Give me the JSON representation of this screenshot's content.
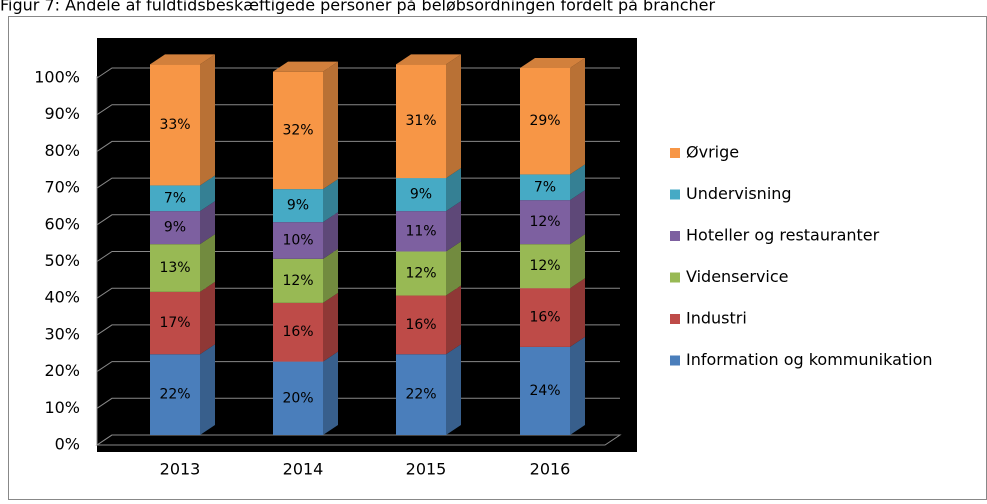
{
  "chart_data": {
    "type": "bar3d_stacked",
    "title": "Figur 7: Andele af fuldtidsbeskæftigede personer på beløbsordningen fordelt på brancher",
    "categories": [
      "2013",
      "2014",
      "2015",
      "2016"
    ],
    "series": [
      {
        "name": "Information og kommunikation",
        "color": "#4a7ebb",
        "values": [
          22,
          20,
          22,
          24
        ],
        "value_labels": [
          "22%",
          "20%",
          "22%",
          "24%"
        ]
      },
      {
        "name": "Industri",
        "color": "#be4b48",
        "values": [
          17,
          16,
          16,
          16
        ],
        "value_labels": [
          "17%",
          "16%",
          "16%",
          "16%"
        ]
      },
      {
        "name": "Videnservice",
        "color": "#98b954",
        "values": [
          13,
          12,
          12,
          12
        ],
        "value_labels": [
          "13%",
          "12%",
          "12%",
          "12%"
        ]
      },
      {
        "name": "Hoteller og restauranter",
        "color": "#7d60a0",
        "values": [
          9,
          10,
          11,
          12
        ],
        "value_labels": [
          "9%",
          "10%",
          "11%",
          "12%"
        ]
      },
      {
        "name": "Undervisning",
        "color": "#46aac5",
        "values": [
          7,
          9,
          9,
          7
        ],
        "value_labels": [
          "7%",
          "9%",
          "9%",
          "7%"
        ]
      },
      {
        "name": "Øvrige",
        "color": "#f79646",
        "values": [
          33,
          32,
          31,
          29
        ],
        "value_labels": [
          "33%",
          "32%",
          "31%",
          "29%"
        ]
      }
    ],
    "ylim": [
      0,
      100
    ],
    "yticks": [
      {
        "value": 0,
        "label": "0%"
      },
      {
        "value": 10,
        "label": "10%"
      },
      {
        "value": 20,
        "label": "20%"
      },
      {
        "value": 30,
        "label": "30%"
      },
      {
        "value": 40,
        "label": "40%"
      },
      {
        "value": 50,
        "label": "50%"
      },
      {
        "value": 60,
        "label": "60%"
      },
      {
        "value": 70,
        "label": "70%"
      },
      {
        "value": 80,
        "label": "80%"
      },
      {
        "value": 90,
        "label": "90%"
      },
      {
        "value": 100,
        "label": "100%"
      }
    ],
    "grid": true,
    "legend": "right"
  }
}
